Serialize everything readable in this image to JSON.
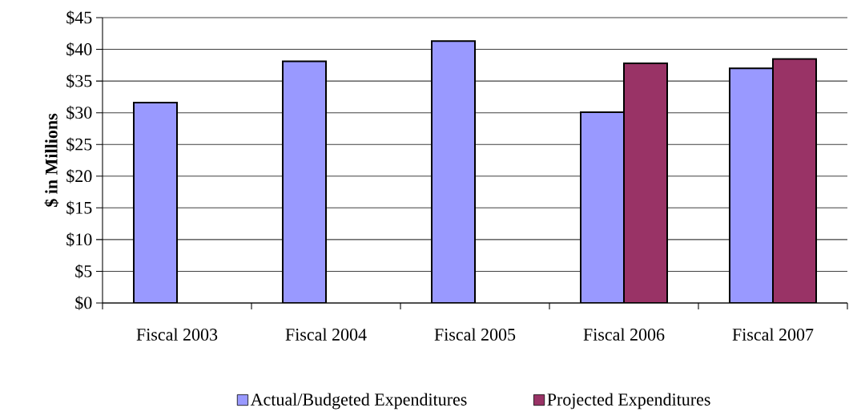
{
  "chart_data": {
    "type": "bar",
    "ylabel": "$ in Millions",
    "categories": [
      "Fiscal 2003",
      "Fiscal 2004",
      "Fiscal 2005",
      "Fiscal 2006",
      "Fiscal 2007"
    ],
    "series": [
      {
        "name": "Actual/Budgeted Expenditures",
        "color": "#9999ff",
        "values": [
          31.6,
          38.1,
          41.3,
          30.1,
          37.0
        ]
      },
      {
        "name": "Projected Expenditures",
        "color": "#993366",
        "values": [
          null,
          null,
          null,
          37.8,
          38.5
        ]
      }
    ],
    "ylim": [
      0,
      45
    ],
    "yticks": [
      {
        "value": 0,
        "label": "$0"
      },
      {
        "value": 5,
        "label": "$5"
      },
      {
        "value": 10,
        "label": "$10"
      },
      {
        "value": 15,
        "label": "$15"
      },
      {
        "value": 20,
        "label": "$20"
      },
      {
        "value": 25,
        "label": "$25"
      },
      {
        "value": 30,
        "label": "$30"
      },
      {
        "value": 35,
        "label": "$35"
      },
      {
        "value": 40,
        "label": "$40"
      },
      {
        "value": 45,
        "label": "$45"
      }
    ],
    "grid": "y",
    "legend": "bottom"
  }
}
